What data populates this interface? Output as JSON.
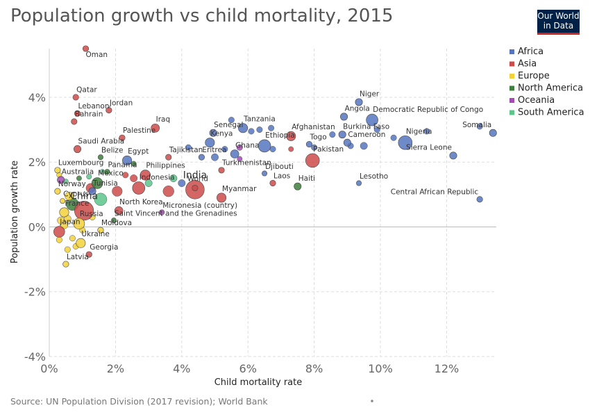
{
  "header": {
    "title": "Population growth vs child mortality, 2015",
    "logo_line1": "Our World",
    "logo_line2": "in Data"
  },
  "footer": {
    "source": "Source: UN Population Division (2017 revision); World Bank"
  },
  "colors": {
    "Africa": "#5675c0",
    "Asia": "#ce4b4b",
    "Europe": "#f2d13b",
    "North America": "#3d7f3d",
    "Oceania": "#a64bb5",
    "South America": "#5cc58a"
  },
  "chart_data": {
    "type": "scatter",
    "xlabel": "Child mortality rate",
    "ylabel": "Population growth rate",
    "xlim": [
      0,
      13.5
    ],
    "ylim": [
      -4,
      5.5
    ],
    "x_ticks": [
      {
        "v": 0,
        "label": "0%"
      },
      {
        "v": 2,
        "label": "2%"
      },
      {
        "v": 4,
        "label": "4%"
      },
      {
        "v": 6,
        "label": "6%"
      },
      {
        "v": 8,
        "label": "8%"
      },
      {
        "v": 10,
        "label": "10%"
      },
      {
        "v": 12,
        "label": "12%"
      }
    ],
    "y_ticks": [
      {
        "v": -4,
        "label": "-4%"
      },
      {
        "v": -2,
        "label": "-2%"
      },
      {
        "v": 0,
        "label": "0%"
      },
      {
        "v": 2,
        "label": "2%"
      },
      {
        "v": 4,
        "label": "4%"
      }
    ],
    "legend": [
      "Africa",
      "Asia",
      "Europe",
      "North America",
      "Oceania",
      "South America"
    ],
    "legend_position": "right",
    "grid": true,
    "points": [
      {
        "label": "Oman",
        "x": 1.1,
        "y": 5.5,
        "region": "Asia",
        "size": 2
      },
      {
        "label": "Qatar",
        "x": 0.8,
        "y": 4.0,
        "region": "Asia",
        "size": 2
      },
      {
        "label": "Lebanon",
        "x": 0.85,
        "y": 3.5,
        "region": "Asia",
        "size": 2
      },
      {
        "label": "Jordan",
        "x": 1.8,
        "y": 3.6,
        "region": "Asia",
        "size": 2
      },
      {
        "label": "Bahrain",
        "x": 0.75,
        "y": 3.25,
        "region": "Asia",
        "size": 2
      },
      {
        "label": "Iraq",
        "x": 3.2,
        "y": 3.05,
        "region": "Asia",
        "size": 4
      },
      {
        "label": "Palestine",
        "x": 2.2,
        "y": 2.75,
        "region": "Asia",
        "size": 2
      },
      {
        "label": "Saudi Arabia",
        "x": 0.85,
        "y": 2.4,
        "region": "Asia",
        "size": 3
      },
      {
        "label": "Belize",
        "x": 1.55,
        "y": 2.15,
        "region": "North America",
        "size": 1.5
      },
      {
        "label": "Egypt",
        "x": 2.35,
        "y": 2.05,
        "region": "Africa",
        "size": 5
      },
      {
        "label": "Tajikistan",
        "x": 3.6,
        "y": 2.15,
        "region": "Asia",
        "size": 2
      },
      {
        "label": "Eritrea",
        "x": 4.6,
        "y": 2.15,
        "region": "Africa",
        "size": 2
      },
      {
        "label": "Luxembourg",
        "x": 0.25,
        "y": 1.75,
        "region": "Europe",
        "size": 2
      },
      {
        "label": "Panama",
        "x": 1.75,
        "y": 1.7,
        "region": "North America",
        "size": 1.5
      },
      {
        "label": "Philippines",
        "x": 2.9,
        "y": 1.6,
        "region": "Asia",
        "size": 6
      },
      {
        "label": "Australia",
        "x": 0.35,
        "y": 1.45,
        "region": "Oceania",
        "size": 3
      },
      {
        "label": "Mexico",
        "x": 1.45,
        "y": 1.35,
        "region": "North America",
        "size": 7
      },
      {
        "label": "Indonesia",
        "x": 2.7,
        "y": 1.2,
        "region": "Asia",
        "size": 9
      },
      {
        "label": "World",
        "x": 4.4,
        "y": 1.2,
        "region": "Asia",
        "size": 2
      },
      {
        "label": "India",
        "x": 4.4,
        "y": 1.15,
        "region": "Asia",
        "size": 20
      },
      {
        "label": "Norway",
        "x": 0.25,
        "y": 1.1,
        "region": "Europe",
        "size": 2
      },
      {
        "label": "Tunisia",
        "x": 1.3,
        "y": 1.1,
        "region": "Africa",
        "size": 3
      },
      {
        "label": "Cyprus",
        "x": 0.4,
        "y": 0.8,
        "region": "Europe",
        "size": 1.5
      },
      {
        "label": "China",
        "x": 1.05,
        "y": 0.5,
        "region": "Asia",
        "size": 21
      },
      {
        "label": "France",
        "x": 0.45,
        "y": 0.45,
        "region": "Europe",
        "size": 5
      },
      {
        "label": "North Korea",
        "x": 2.1,
        "y": 0.5,
        "region": "Asia",
        "size": 4
      },
      {
        "label": "Micronesia (country)",
        "x": 3.4,
        "y": 0.45,
        "region": "Oceania",
        "size": 1.5
      },
      {
        "label": "Russia",
        "x": 0.9,
        "y": 0.1,
        "region": "Europe",
        "size": 7
      },
      {
        "label": "Saint Vincent and the Grenadines",
        "x": 1.95,
        "y": 0.2,
        "region": "North America",
        "size": 1.5
      },
      {
        "label": "Japan",
        "x": 0.3,
        "y": -0.15,
        "region": "Asia",
        "size": 7
      },
      {
        "label": "Moldova",
        "x": 1.55,
        "y": -0.1,
        "region": "Europe",
        "size": 2
      },
      {
        "label": "Ukraine",
        "x": 0.95,
        "y": -0.5,
        "region": "Europe",
        "size": 5
      },
      {
        "label": "Georgia",
        "x": 1.2,
        "y": -0.85,
        "region": "Asia",
        "size": 2
      },
      {
        "label": "Latvia",
        "x": 0.5,
        "y": -1.15,
        "region": "Europe",
        "size": 2
      },
      {
        "label": "Tanzania",
        "x": 5.85,
        "y": 3.05,
        "region": "Africa",
        "size": 5
      },
      {
        "label": "Senegal",
        "x": 4.95,
        "y": 2.9,
        "region": "Africa",
        "size": 3
      },
      {
        "label": "Kenya",
        "x": 4.85,
        "y": 2.6,
        "region": "Africa",
        "size": 5
      },
      {
        "label": "Ghana",
        "x": 5.6,
        "y": 2.25,
        "region": "Africa",
        "size": 4
      },
      {
        "label": "Turkmenistan",
        "x": 5.2,
        "y": 1.75,
        "region": "Asia",
        "size": 2
      },
      {
        "label": "Myanmar",
        "x": 5.2,
        "y": 0.9,
        "region": "Asia",
        "size": 5
      },
      {
        "label": "Afghanistan",
        "x": 7.3,
        "y": 2.8,
        "region": "Asia",
        "size": 5
      },
      {
        "label": "Ethiopia",
        "x": 6.5,
        "y": 2.5,
        "region": "Africa",
        "size": 9
      },
      {
        "label": "Djibouti",
        "x": 6.5,
        "y": 1.65,
        "region": "Africa",
        "size": 1.5
      },
      {
        "label": "Laos",
        "x": 6.75,
        "y": 1.35,
        "region": "Asia",
        "size": 2
      },
      {
        "label": "Togo",
        "x": 7.85,
        "y": 2.55,
        "region": "Africa",
        "size": 2
      },
      {
        "label": "Pakistan",
        "x": 7.95,
        "y": 2.05,
        "region": "Asia",
        "size": 11
      },
      {
        "label": "Haiti",
        "x": 7.5,
        "y": 1.25,
        "region": "North America",
        "size": 3
      },
      {
        "label": "Niger",
        "x": 9.35,
        "y": 3.85,
        "region": "Africa",
        "size": 3
      },
      {
        "label": "Angola",
        "x": 8.9,
        "y": 3.4,
        "region": "Africa",
        "size": 3
      },
      {
        "label": "Democratic Republic of Congo",
        "x": 9.75,
        "y": 3.3,
        "region": "Africa",
        "size": 8
      },
      {
        "label": "Burkina Faso",
        "x": 8.85,
        "y": 2.85,
        "region": "Africa",
        "size": 3
      },
      {
        "label": "Cameroon",
        "x": 9.0,
        "y": 2.6,
        "region": "Africa",
        "size": 3
      },
      {
        "label": "Nigeria",
        "x": 10.75,
        "y": 2.6,
        "region": "Africa",
        "size": 11
      },
      {
        "label": "Lesotho",
        "x": 9.35,
        "y": 1.35,
        "region": "Africa",
        "size": 1.5
      },
      {
        "label": "Somalia",
        "x": 13.4,
        "y": 2.9,
        "region": "Africa",
        "size": 3
      },
      {
        "label": "Sierra Leone",
        "x": 12.2,
        "y": 2.2,
        "region": "Africa",
        "size": 3
      },
      {
        "label": "Central African Republic",
        "x": 13.0,
        "y": 0.85,
        "region": "Africa",
        "size": 2
      }
    ],
    "unlabeled_points": [
      {
        "x": 0.3,
        "y": 1.6,
        "region": "Europe"
      },
      {
        "x": 0.5,
        "y": 1.4,
        "region": "South America"
      },
      {
        "x": 0.9,
        "y": 1.5,
        "region": "North America"
      },
      {
        "x": 1.2,
        "y": 1.55,
        "region": "South America"
      },
      {
        "x": 1.6,
        "y": 1.7,
        "region": "South America"
      },
      {
        "x": 1.55,
        "y": 0.85,
        "region": "South America",
        "size": 9
      },
      {
        "x": 1.25,
        "y": 1.2,
        "region": "Asia",
        "size": 5
      },
      {
        "x": 2.05,
        "y": 1.1,
        "region": "Asia",
        "size": 6
      },
      {
        "x": 3.6,
        "y": 1.1,
        "region": "Asia",
        "size": 7
      },
      {
        "x": 2.55,
        "y": 1.5,
        "region": "Asia",
        "size": 3
      },
      {
        "x": 3.0,
        "y": 1.35,
        "region": "South America",
        "size": 3
      },
      {
        "x": 3.75,
        "y": 1.5,
        "region": "South America",
        "size": 3
      },
      {
        "x": 0.7,
        "y": 0.7,
        "region": "North America",
        "size": 9
      },
      {
        "x": 0.6,
        "y": 0.95,
        "region": "Europe",
        "size": 4
      },
      {
        "x": 0.55,
        "y": 0.25,
        "region": "Europe",
        "size": 3
      },
      {
        "x": 0.35,
        "y": 0.2,
        "region": "Europe",
        "size": 3
      },
      {
        "x": 0.45,
        "y": 0.05,
        "region": "Europe",
        "size": 3
      },
      {
        "x": 0.3,
        "y": -0.4,
        "region": "Europe",
        "size": 2
      },
      {
        "x": 0.7,
        "y": -0.35,
        "region": "Europe",
        "size": 2
      },
      {
        "x": 0.55,
        "y": -0.7,
        "region": "Europe",
        "size": 2
      },
      {
        "x": 0.8,
        "y": -0.6,
        "region": "Europe",
        "size": 2
      },
      {
        "x": 1.0,
        "y": -0.1,
        "region": "Europe",
        "size": 2
      },
      {
        "x": 1.3,
        "y": 0.3,
        "region": "Europe",
        "size": 2
      },
      {
        "x": 2.55,
        "y": 1.95,
        "region": "North America",
        "size": 1.5
      },
      {
        "x": 2.3,
        "y": 1.6,
        "region": "Asia",
        "size": 2
      },
      {
        "x": 4.2,
        "y": 2.45,
        "region": "Africa",
        "size": 2
      },
      {
        "x": 4.0,
        "y": 1.35,
        "region": "Africa",
        "size": 3
      },
      {
        "x": 5.0,
        "y": 2.15,
        "region": "Africa",
        "size": 3
      },
      {
        "x": 5.3,
        "y": 2.4,
        "region": "Africa",
        "size": 2
      },
      {
        "x": 5.75,
        "y": 2.45,
        "region": "Oceania",
        "size": 2
      },
      {
        "x": 5.5,
        "y": 3.3,
        "region": "Africa",
        "size": 2
      },
      {
        "x": 6.1,
        "y": 2.95,
        "region": "Africa",
        "size": 2
      },
      {
        "x": 6.35,
        "y": 3.0,
        "region": "Africa",
        "size": 2
      },
      {
        "x": 6.7,
        "y": 3.05,
        "region": "Africa",
        "size": 2
      },
      {
        "x": 6.75,
        "y": 2.4,
        "region": "Africa",
        "size": 2
      },
      {
        "x": 5.75,
        "y": 2.1,
        "region": "Oceania",
        "size": 1.5
      },
      {
        "x": 7.3,
        "y": 2.4,
        "region": "Asia",
        "size": 1.5
      },
      {
        "x": 8.0,
        "y": 2.45,
        "region": "Africa",
        "size": 2
      },
      {
        "x": 8.55,
        "y": 2.85,
        "region": "Africa",
        "size": 2
      },
      {
        "x": 9.1,
        "y": 2.5,
        "region": "Africa",
        "size": 2
      },
      {
        "x": 9.5,
        "y": 2.5,
        "region": "Africa",
        "size": 3
      },
      {
        "x": 9.9,
        "y": 3.0,
        "region": "Africa",
        "size": 2
      },
      {
        "x": 10.4,
        "y": 2.75,
        "region": "Africa",
        "size": 2
      },
      {
        "x": 11.4,
        "y": 2.95,
        "region": "Africa",
        "size": 2
      },
      {
        "x": 13.0,
        "y": 3.1,
        "region": "Africa",
        "size": 2
      }
    ]
  }
}
